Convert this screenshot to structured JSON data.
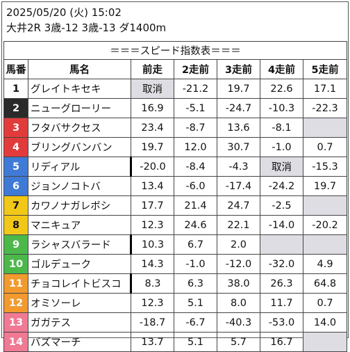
{
  "header": {
    "datetime": "2025/05/20 (火) 15:02",
    "race_info": "大井2R 3歳-12 3歳-13 ダ1400m"
  },
  "table": {
    "banner": "＝＝＝スピード指数表＝＝＝",
    "columns": [
      "馬番",
      "馬名",
      "前走",
      "2走前",
      "3走前",
      "4走前",
      "5走前"
    ],
    "rows": [
      {
        "num": "1",
        "color": "#ffffff",
        "text_color": "#111111",
        "name": "グレイトキセキ",
        "values": [
          "取消",
          "-21.2",
          "19.7",
          "22.6",
          "17.1"
        ],
        "empty": [
          true,
          false,
          false,
          false,
          false
        ],
        "rank_mark": -1
      },
      {
        "num": "2",
        "color": "#2a2a2a",
        "text_color": "#ffffff",
        "name": "ニューグローリー",
        "values": [
          "16.9",
          "-5.1",
          "-24.7",
          "-10.3",
          "-22.3"
        ],
        "empty": [
          false,
          false,
          false,
          false,
          false
        ],
        "rank_mark": -1
      },
      {
        "num": "3",
        "color": "#e23b3b",
        "text_color": "#ffffff",
        "name": "フタバサクセス",
        "values": [
          "23.4",
          "-8.7",
          "13.6",
          "-8.1",
          ""
        ],
        "empty": [
          false,
          false,
          false,
          false,
          true
        ],
        "rank_mark": -1
      },
      {
        "num": "4",
        "color": "#e23b3b",
        "text_color": "#ffffff",
        "name": "ブリングバンバン",
        "values": [
          "19.7",
          "12.0",
          "30.7",
          "-1.0",
          "0.7"
        ],
        "empty": [
          false,
          false,
          false,
          false,
          false
        ],
        "rank_mark": -1
      },
      {
        "num": "5",
        "color": "#3f7ad6",
        "text_color": "#ffffff",
        "name": "リディアル",
        "values": [
          "-20.0",
          "-8.4",
          "-4.3",
          "取消",
          "-15.3"
        ],
        "empty": [
          false,
          false,
          false,
          true,
          false
        ],
        "rank_mark": 0
      },
      {
        "num": "6",
        "color": "#3f7ad6",
        "text_color": "#ffffff",
        "name": "ジョンノコトバ",
        "values": [
          "13.4",
          "-6.0",
          "-17.4",
          "-24.2",
          "19.7"
        ],
        "empty": [
          false,
          false,
          false,
          false,
          false
        ],
        "rank_mark": -1
      },
      {
        "num": "7",
        "color": "#f2c818",
        "text_color": "#111111",
        "name": "カワノナガレボシ",
        "values": [
          "17.7",
          "21.4",
          "24.7",
          "-2.5",
          ""
        ],
        "empty": [
          false,
          false,
          false,
          false,
          true
        ],
        "rank_mark": -1
      },
      {
        "num": "8",
        "color": "#f2c818",
        "text_color": "#111111",
        "name": "マニキュア",
        "values": [
          "12.3",
          "24.6",
          "22.1",
          "-14.0",
          "-20.2"
        ],
        "empty": [
          false,
          false,
          false,
          false,
          false
        ],
        "rank_mark": -1
      },
      {
        "num": "9",
        "color": "#4cb84a",
        "text_color": "#ffffff",
        "name": "ラシャスバラード",
        "values": [
          "10.3",
          "6.7",
          "2.0",
          "",
          ""
        ],
        "empty": [
          false,
          false,
          false,
          true,
          true
        ],
        "rank_mark": 0
      },
      {
        "num": "10",
        "color": "#4cb84a",
        "text_color": "#ffffff",
        "name": "ゴルデューク",
        "values": [
          "14.3",
          "-1.0",
          "-12.0",
          "-32.0",
          "4.9"
        ],
        "empty": [
          false,
          false,
          false,
          false,
          false
        ],
        "rank_mark": -1
      },
      {
        "num": "11",
        "color": "#f29a2e",
        "text_color": "#ffffff",
        "name": "チョコレイトビスコ",
        "values": [
          "8.3",
          "6.3",
          "38.0",
          "26.3",
          "64.8"
        ],
        "empty": [
          false,
          false,
          false,
          false,
          false
        ],
        "rank_mark": 0
      },
      {
        "num": "12",
        "color": "#f29a2e",
        "text_color": "#ffffff",
        "name": "オミソーレ",
        "values": [
          "12.3",
          "5.1",
          "8.0",
          "11.7",
          "0.7"
        ],
        "empty": [
          false,
          false,
          false,
          false,
          false
        ],
        "rank_mark": -1
      },
      {
        "num": "13",
        "color": "#f07a94",
        "text_color": "#ffffff",
        "name": "ガガテス",
        "values": [
          "-18.7",
          "-6.7",
          "-40.3",
          "-53.0",
          "14.0"
        ],
        "empty": [
          false,
          false,
          false,
          false,
          false
        ],
        "rank_mark": -1
      },
      {
        "num": "14",
        "color": "#f07a94",
        "text_color": "#ffffff",
        "name": "バズマーチ",
        "values": [
          "13.7",
          "5.1",
          "5.7",
          "16.7",
          ""
        ],
        "empty": [
          false,
          false,
          false,
          false,
          true
        ],
        "rank_mark": -1
      }
    ]
  }
}
